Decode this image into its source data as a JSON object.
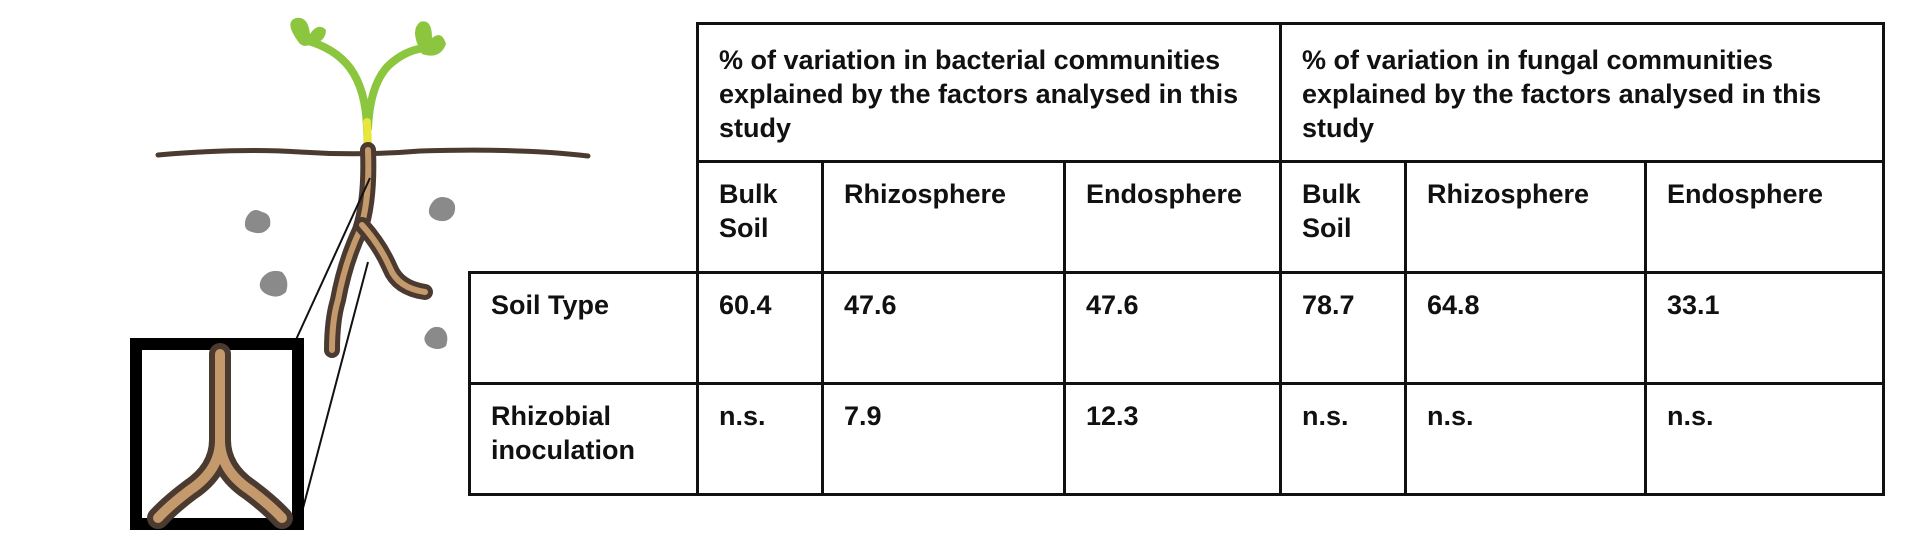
{
  "illustration": {
    "icons": [
      "seedling-icon",
      "soil-line",
      "root-icon",
      "soil-particle-icon",
      "root-zoom-icon"
    ],
    "colors": {
      "shoot": "#8cc63f",
      "hypocotyl": "#e8e63a",
      "soil_line": "#4b3a30",
      "root_outline": "#4b3a30",
      "root_fill": "#c49a6c",
      "particle": "#8a8a8a",
      "zoom_frame": "#000000"
    }
  },
  "table": {
    "bacterial_header": "% of variation in bacterial communities explained by the factors analysed in this study",
    "fungal_header": "% of variation in fungal communities explained by the factors analysed in this study",
    "subheaders": [
      "Bulk Soil",
      "Rhizosphere",
      "Endosphere",
      "Bulk Soil",
      "Rhizosphere",
      "Endosphere"
    ],
    "rows": [
      {
        "label": "Soil Type",
        "values": [
          "60.4",
          "47.6",
          "47.6",
          "78.7",
          "64.8",
          "33.1"
        ]
      },
      {
        "label": "Rhizobial inoculation",
        "values": [
          "n.s.",
          "7.9",
          "12.3",
          "n.s.",
          "n.s.",
          "n.s."
        ]
      }
    ]
  }
}
